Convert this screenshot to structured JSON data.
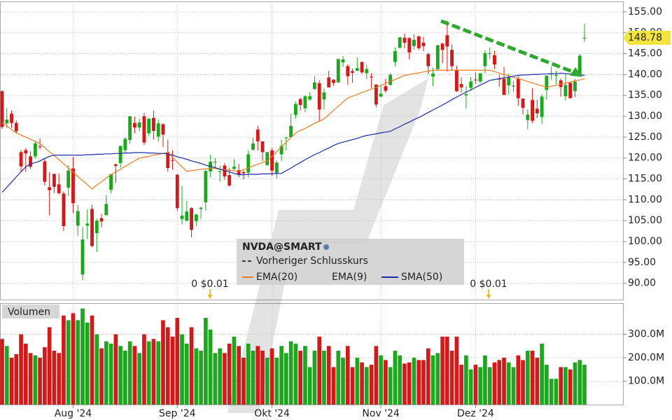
{
  "chart_data": {
    "type": "candlestick",
    "symbol": "NVDA@SMART",
    "categories": [
      null,
      null,
      null,
      null,
      null,
      null,
      null,
      null,
      null,
      null,
      null,
      null,
      null,
      null,
      null,
      "Aug '24",
      null,
      null,
      null,
      null,
      null,
      null,
      null,
      null,
      null,
      null,
      null,
      null,
      null,
      null,
      null,
      null,
      null,
      null,
      null,
      null,
      null,
      "Sep '24",
      null,
      null,
      null,
      null,
      null,
      null,
      null,
      null,
      null,
      null,
      null,
      null,
      null,
      null,
      null,
      null,
      null,
      null,
      null,
      "Okt '24",
      null,
      null,
      null,
      null,
      null,
      null,
      null,
      null,
      null,
      null,
      null,
      null,
      null,
      null,
      null,
      null,
      null,
      null,
      null,
      null,
      null,
      null,
      "Nov '24",
      null,
      null,
      null,
      null,
      null,
      null,
      null,
      null,
      null,
      null,
      null,
      null,
      null,
      null,
      null,
      null,
      null,
      null,
      null,
      "Dez '24",
      null,
      null,
      null,
      null,
      null,
      null,
      null,
      null,
      null,
      null,
      null,
      null,
      null,
      null,
      null,
      null,
      null,
      null,
      null,
      null,
      null,
      null,
      null
    ],
    "open": [
      136.0,
      128.3,
      130.6,
      128.4,
      121.4,
      121.9,
      120.4,
      120.4,
      122.8,
      119.2,
      113.0,
      116.2,
      113.7,
      111.5,
      112.9,
      117.5,
      103.8,
      92.1,
      103.8,
      107.8,
      102.0,
      105.6,
      106.3,
      112.4,
      118.5,
      118.8,
      121.9,
      124.3,
      128.4,
      127.3,
      130.0,
      125.9,
      129.6,
      125.1,
      128.1,
      121.4,
      119.5,
      116.0,
      105.4,
      105.0,
      108.0,
      104.9,
      107.8,
      109.4,
      116.8,
      119.1,
      116.8,
      118.2,
      115.9,
      117.4,
      117.1,
      116.6,
      116.5,
      122.0,
      126.8,
      124.0,
      118.3,
      121.8,
      116.4,
      120.9,
      124.9,
      125.0,
      130.3,
      134.1,
      131.9,
      134.0,
      136.5,
      137.9,
      134.0,
      139.3,
      138.7,
      138.1,
      142.9,
      142.0,
      140.8,
      140.9,
      143.0,
      140.3,
      139.5,
      137.6,
      134.7,
      137.2,
      137.5,
      143.0,
      146.4,
      148.8,
      148.7,
      146.8,
      149.1,
      147.6,
      144.9,
      139.5,
      141.3,
      147.4,
      149.4,
      145.9,
      141.0,
      137.7,
      135.0,
      136.8,
      138.8,
      138.3,
      142.0,
      145.1,
      144.6,
      139.0,
      139.0,
      137.4,
      137.1,
      138.9,
      134.2,
      129.1,
      133.9,
      131.8,
      129.8,
      136.3,
      140.0,
      139.7,
      138.6,
      134.8,
      138.0,
      136.0,
      140.0,
      148.6
    ],
    "high": [
      136.2,
      131.9,
      131.4,
      129.0,
      121.9,
      122.4,
      121.6,
      124.1,
      124.7,
      119.9,
      116.6,
      116.2,
      116.3,
      112.0,
      118.3,
      120.2,
      108.7,
      103.4,
      107.7,
      108.8,
      105.5,
      106.6,
      111.1,
      116.2,
      118.6,
      123.0,
      125.0,
      130.0,
      129.9,
      129.4,
      130.8,
      129.6,
      131.3,
      129.2,
      128.3,
      124.4,
      121.8,
      116.2,
      113.3,
      109.7,
      108.2,
      106.6,
      108.4,
      117.2,
      120.8,
      120.0,
      118.2,
      118.8,
      117.7,
      119.7,
      118.6,
      117.0,
      121.8,
      124.9,
      127.7,
      124.0,
      121.5,
      122.4,
      119.4,
      124.4,
      125.0,
      130.6,
      133.5,
      134.5,
      135.0,
      135.8,
      139.6,
      138.6,
      136.6,
      140.9,
      138.9,
      143.7,
      144.4,
      142.4,
      141.4,
      144.1,
      143.1,
      142.3,
      140.3,
      137.6,
      137.3,
      139.0,
      140.4,
      146.5,
      148.9,
      149.8,
      148.9,
      149.7,
      149.3,
      149.0,
      145.2,
      141.6,
      147.1,
      147.6,
      152.9,
      147.2,
      142.1,
      139.3,
      137.2,
      139.4,
      140.5,
      140.0,
      145.8,
      146.5,
      145.7,
      140.0,
      141.8,
      140.2,
      138.4,
      139.6,
      134.4,
      131.6,
      136.7,
      134.0,
      135.3,
      139.7,
      141.9,
      140.9,
      139.0,
      140.3,
      138.1,
      138.9,
      144.9,
      152.2
    ],
    "low": [
      127.0,
      127.2,
      127.2,
      125.8,
      116.7,
      116.7,
      117.4,
      119.9,
      122.1,
      113.4,
      106.3,
      111.6,
      111.3,
      102.5,
      110.9,
      106.8,
      101.4,
      90.7,
      100.6,
      98.7,
      97.5,
      103.4,
      106.3,
      111.6,
      114.1,
      117.7,
      121.2,
      123.4,
      125.9,
      126.4,
      123.1,
      125.2,
      124.4,
      123.9,
      122.6,
      116.7,
      117.2,
      107.3,
      104.1,
      104.8,
      101.0,
      103.7,
      105.4,
      107.4,
      115.4,
      117.6,
      114.4,
      114.8,
      113.2,
      117.2,
      115.4,
      114.9,
      115.4,
      121.8,
      121.8,
      119.3,
      118.2,
      115.8,
      115.1,
      119.3,
      121.8,
      125.0,
      129.4,
      131.4,
      131.0,
      133.7,
      136.3,
      128.7,
      131.6,
      136.9,
      137.3,
      138.0,
      141.8,
      137.5,
      138.0,
      140.8,
      140.1,
      138.9,
      136.8,
      132.1,
      134.6,
      135.6,
      137.3,
      142.0,
      146.2,
      146.3,
      143.6,
      146.0,
      145.9,
      145.6,
      140.1,
      137.2,
      141.0,
      142.7,
      140.7,
      141.1,
      135.8,
      135.7,
      131.8,
      136.1,
      137.8,
      138.0,
      140.3,
      143.7,
      141.3,
      137.1,
      135.1,
      135.2,
      135.8,
      132.5,
      130.4,
      126.9,
      128.3,
      129.6,
      128.2,
      134.0,
      138.7,
      137.7,
      134.7,
      133.8,
      134.3,
      134.6,
      139.7,
      147.8
    ],
    "close": [
      127.4,
      129.2,
      128.4,
      126.4,
      118.0,
      121.1,
      117.9,
      123.5,
      122.6,
      114.3,
      112.3,
      113.1,
      111.6,
      103.7,
      117.0,
      109.2,
      107.3,
      100.5,
      104.3,
      98.9,
      105.0,
      104.8,
      109.0,
      116.1,
      118.1,
      122.9,
      124.6,
      130.0,
      127.3,
      128.5,
      123.7,
      129.4,
      126.5,
      128.3,
      125.6,
      117.6,
      119.4,
      108.0,
      106.2,
      107.2,
      102.8,
      106.5,
      108.1,
      116.9,
      119.1,
      119.1,
      116.8,
      115.6,
      113.4,
      117.9,
      116.0,
      116.3,
      120.9,
      123.5,
      124.0,
      121.4,
      121.4,
      117.0,
      118.9,
      122.9,
      124.9,
      127.7,
      132.9,
      132.7,
      134.8,
      134.8,
      138.1,
      131.6,
      135.7,
      136.9,
      138.0,
      143.7,
      143.6,
      139.6,
      140.4,
      141.5,
      140.5,
      141.3,
      139.3,
      132.8,
      135.4,
      136.1,
      139.9,
      145.6,
      148.9,
      147.6,
      145.3,
      148.3,
      146.3,
      146.8,
      142.0,
      140.2,
      147.0,
      145.9,
      146.7,
      142.0,
      136.0,
      136.9,
      135.3,
      138.3,
      138.6,
      140.3,
      145.1,
      145.1,
      142.4,
      138.8,
      135.1,
      139.3,
      137.3,
      134.3,
      132.0,
      130.4,
      128.9,
      130.7,
      134.7,
      139.7,
      140.2,
      139.9,
      137.0,
      137.5,
      134.3,
      138.3,
      144.5,
      148.78
    ],
    "up_color": "#1fa61f",
    "down_color": "#d11a1a",
    "series": [
      {
        "name": "Vorheriger Schlusskurs",
        "color": "#3a3a3a",
        "dashed": true
      },
      {
        "name": "EMA(20)",
        "color": "#f07a1e",
        "values": [
          128.5,
          127.7,
          126.8,
          126.0,
          125.5,
          125.0,
          124.5,
          124.0,
          123.5,
          122.5,
          121.5,
          120.6,
          119.6,
          118.6,
          117.6,
          116.6,
          115.6,
          114.6,
          113.6,
          112.6,
          113.5,
          114.3,
          115.2,
          116.0,
          116.7,
          117.3,
          118.0,
          118.7,
          119.3,
          120.0,
          120.2,
          120.4,
          120.7,
          120.9,
          121.1,
          121.3,
          120.2,
          119.0,
          117.9,
          116.8,
          117.0,
          117.1,
          117.3,
          117.4,
          117.6,
          117.5,
          117.3,
          117.2,
          117.1,
          116.9,
          116.8,
          117.2,
          117.6,
          118.1,
          118.5,
          118.9,
          119.3,
          120.4,
          121.5,
          122.7,
          123.8,
          124.9,
          126.0,
          126.6,
          127.1,
          127.7,
          128.3,
          128.8,
          129.4,
          130.4,
          131.4,
          132.4,
          133.4,
          134.4,
          134.8,
          135.2,
          135.7,
          136.1,
          136.5,
          136.9,
          137.4,
          137.9,
          138.4,
          138.8,
          139.3,
          139.8,
          140.0,
          140.2,
          140.4,
          140.6,
          140.8,
          141.0,
          141.0,
          141.0,
          141.0,
          141.0,
          141.0,
          141.0,
          141.0,
          141.0,
          141.0,
          141.0,
          141.0,
          141.0,
          140.7,
          140.3,
          140.0,
          139.7,
          139.3,
          139.0,
          138.7,
          138.3,
          138.0,
          137.6,
          137.3,
          136.9,
          137.2,
          137.4,
          137.7,
          137.9,
          138.2,
          138.5,
          138.7,
          139.0
        ]
      },
      {
        "name": "EMA(9)"
      },
      {
        "name": "SMA(50)",
        "color": "#1c2ca8",
        "values": [
          111.8,
          113.0,
          114.2,
          115.5,
          116.7,
          117.9,
          118.6,
          118.9,
          119.3,
          119.9,
          120.4,
          120.7,
          120.7,
          120.7,
          120.7,
          120.7,
          120.7,
          120.7,
          120.8,
          120.8,
          120.9,
          120.9,
          121.0,
          121.0,
          121.1,
          121.1,
          121.2,
          121.2,
          121.3,
          121.3,
          121.3,
          121.2,
          121.2,
          121.1,
          121.1,
          121.0,
          120.7,
          120.3,
          120.0,
          119.7,
          119.3,
          119.0,
          118.7,
          118.3,
          118.0,
          117.7,
          117.3,
          117.0,
          116.7,
          116.3,
          116.0,
          116.0,
          116.1,
          116.1,
          116.1,
          116.2,
          116.2,
          116.2,
          116.3,
          116.3,
          117.0,
          117.6,
          118.3,
          118.9,
          119.6,
          120.2,
          120.8,
          121.3,
          121.9,
          122.4,
          123.0,
          123.5,
          123.8,
          124.1,
          124.4,
          124.7,
          125.1,
          125.4,
          125.6,
          125.8,
          126.0,
          126.2,
          126.4,
          127.0,
          127.5,
          128.1,
          128.6,
          129.2,
          129.7,
          130.3,
          130.9,
          131.5,
          132.1,
          132.7,
          133.3,
          134.0,
          134.6,
          135.2,
          135.8,
          136.3,
          136.9,
          137.5,
          138.0,
          138.6,
          138.8,
          139.0,
          139.2,
          139.4,
          139.6,
          139.8,
          139.9,
          139.9,
          140.0,
          140.0,
          140.1,
          140.1,
          140.2,
          140.2,
          140.3,
          140.2,
          140.1,
          140.0,
          139.9,
          139.8
        ]
      }
    ],
    "ylim": [
      86.1,
      157.5
    ],
    "yticks": [
      {
        "value": 90,
        "label": "90.00"
      },
      {
        "value": 95,
        "label": "95.00"
      },
      {
        "value": 100,
        "label": "100.00"
      },
      {
        "value": 105,
        "label": "105.00"
      },
      {
        "value": 110,
        "label": "110.00"
      },
      {
        "value": 115,
        "label": "115.00"
      },
      {
        "value": 120,
        "label": "120.00"
      },
      {
        "value": 125,
        "label": "125.00"
      },
      {
        "value": 130,
        "label": "130.00"
      },
      {
        "value": 135,
        "label": "135.00"
      },
      {
        "value": 140,
        "label": "140.00"
      },
      {
        "value": 145,
        "label": "145.00"
      },
      {
        "value": 150,
        "label": "150.00"
      },
      {
        "value": 155,
        "label": "155.00"
      }
    ],
    "grid": true,
    "last_price": 148.78,
    "annotations": [
      "0 $0.01",
      "0 $0.01"
    ],
    "volume": {
      "label": "Volumen",
      "values": [
        280,
        250,
        200,
        215,
        300,
        260,
        220,
        210,
        200,
        245,
        330,
        230,
        220,
        380,
        360,
        390,
        360,
        410,
        350,
        380,
        300,
        240,
        270,
        260,
        300,
        250,
        230,
        270,
        250,
        220,
        300,
        270,
        280,
        270,
        360,
        330,
        290,
        370,
        300,
        260,
        330,
        240,
        230,
        370,
        320,
        220,
        240,
        220,
        260,
        290,
        250,
        200,
        260,
        230,
        250,
        230,
        200,
        240,
        200,
        250,
        220,
        270,
        260,
        230,
        250,
        160,
        230,
        290,
        230,
        250,
        160,
        230,
        200,
        250,
        160,
        200,
        180,
        160,
        170,
        250,
        210,
        190,
        160,
        230,
        210,
        175,
        180,
        200,
        190,
        190,
        240,
        210,
        220,
        290,
        290,
        230,
        290,
        170,
        210,
        150,
        170,
        160,
        210,
        160,
        180,
        190,
        200,
        180,
        160,
        210,
        190,
        230,
        230,
        200,
        260,
        170,
        110,
        110,
        160,
        160,
        150,
        180,
        190,
        170
      ],
      "ylim": [
        0,
        433
      ],
      "yticks": [
        {
          "value": 100,
          "label": "100.0M"
        },
        {
          "value": 200,
          "label": "200.0M"
        },
        {
          "value": 300,
          "label": "300.0M"
        }
      ]
    }
  }
}
